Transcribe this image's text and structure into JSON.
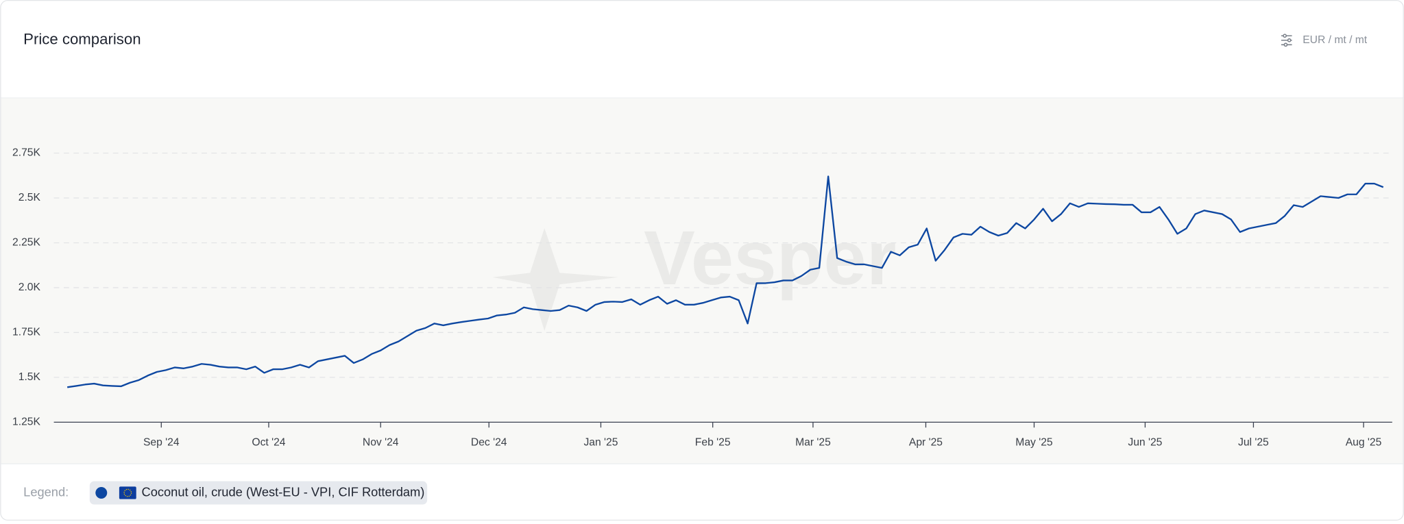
{
  "header": {
    "title": "Price comparison",
    "unit": "EUR / mt / mt"
  },
  "watermark": "Vesper",
  "legend": {
    "label": "Legend:"
  },
  "chart_data": {
    "type": "line",
    "series": [
      {
        "name": "Coconut oil, crude (West-EU - VPI, CIF Rotterdam)",
        "color": "#0d47a1",
        "values": [
          1445,
          1452,
          1460,
          1465,
          1455,
          1452,
          1450,
          1470,
          1485,
          1510,
          1530,
          1540,
          1555,
          1550,
          1560,
          1575,
          1570,
          1560,
          1555,
          1555,
          1545,
          1560,
          1525,
          1545,
          1545,
          1555,
          1570,
          1555,
          1590,
          1600,
          1610,
          1620,
          1580,
          1600,
          1630,
          1650,
          1680,
          1700,
          1730,
          1760,
          1775,
          1800,
          1790,
          1800,
          1808,
          1815,
          1822,
          1828,
          1845,
          1850,
          1860,
          1890,
          1880,
          1875,
          1870,
          1875,
          1900,
          1890,
          1870,
          1905,
          1920,
          1922,
          1920,
          1935,
          1905,
          1930,
          1950,
          1910,
          1930,
          1905,
          1905,
          1915,
          1930,
          1945,
          1950,
          1930,
          1800,
          2025,
          2025,
          2030,
          2040,
          2040,
          2065,
          2100,
          2110,
          2620,
          2165,
          2145,
          2130,
          2130,
          2120,
          2110,
          2200,
          2180,
          2225,
          2240,
          2330,
          2150,
          2210,
          2280,
          2300,
          2295,
          2340,
          2310,
          2290,
          2305,
          2360,
          2330,
          2380,
          2440,
          2370,
          2410,
          2470,
          2450,
          2470,
          2468,
          2466,
          2465,
          2462,
          2462,
          2420,
          2420,
          2450,
          2380,
          2300,
          2330,
          2410,
          2430,
          2420,
          2410,
          2380,
          2310,
          2330,
          2340,
          2350,
          2360,
          2400,
          2460,
          2450,
          2480,
          2510,
          2505,
          2500,
          2520,
          2520,
          2580,
          2580,
          2560
        ]
      }
    ],
    "xlim": [
      -1.5,
      148
    ],
    "xticks": [
      {
        "value": 10.5,
        "label": "Sep '24"
      },
      {
        "value": 22.5,
        "label": "Oct '24"
      },
      {
        "value": 35,
        "label": "Nov '24"
      },
      {
        "value": 47.1,
        "label": "Dec '24"
      },
      {
        "value": 59.6,
        "label": "Jan '25"
      },
      {
        "value": 72.1,
        "label": "Feb '25"
      },
      {
        "value": 83.3,
        "label": "Mar '25"
      },
      {
        "value": 95.9,
        "label": "Apr '25"
      },
      {
        "value": 108,
        "label": "May '25"
      },
      {
        "value": 120.4,
        "label": "Jun '25"
      },
      {
        "value": 132.5,
        "label": "Jul '25"
      },
      {
        "value": 144.8,
        "label": "Aug '25"
      }
    ],
    "ylim": [
      1250,
      3055
    ],
    "yticks": [
      {
        "value": 1250,
        "label": "1.25K"
      },
      {
        "value": 1500,
        "label": "1.5K"
      },
      {
        "value": 1750,
        "label": "1.75K"
      },
      {
        "value": 2000,
        "label": "2.0K"
      },
      {
        "value": 2250,
        "label": "2.25K"
      },
      {
        "value": 2500,
        "label": "2.5K"
      },
      {
        "value": 2750,
        "label": "2.75K"
      }
    ],
    "grid": true
  }
}
